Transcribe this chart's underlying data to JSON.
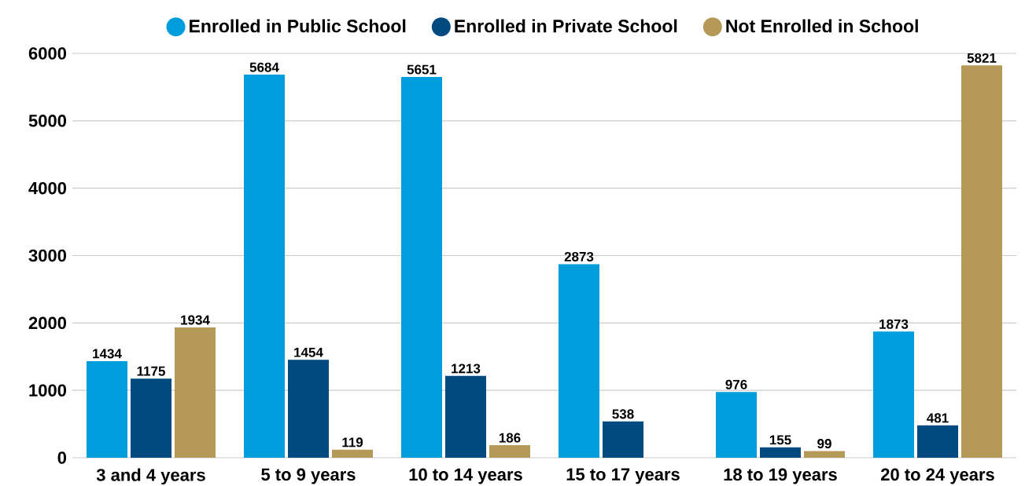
{
  "chart_data": {
    "type": "bar",
    "categories": [
      "3 and 4 years",
      "5 to 9 years",
      "10 to 14 years",
      "15 to 17 years",
      "18 to 19 years",
      "20 to 24 years"
    ],
    "series": [
      {
        "name": "Enrolled in Public School",
        "color": "#009ddc",
        "values": [
          1434,
          5684,
          5651,
          2873,
          976,
          1873
        ]
      },
      {
        "name": "Enrolled in Private School",
        "color": "#004a80",
        "values": [
          1175,
          1454,
          1213,
          538,
          155,
          481
        ]
      },
      {
        "name": "Not Enrolled in School",
        "color": "#b59a57",
        "values": [
          1934,
          119,
          186,
          null,
          99,
          5821
        ]
      }
    ],
    "ylim": [
      0,
      6000
    ],
    "yticks": [
      0,
      1000,
      2000,
      3000,
      4000,
      5000,
      6000
    ],
    "grid": "y",
    "legend": "top",
    "data_labels": true
  }
}
